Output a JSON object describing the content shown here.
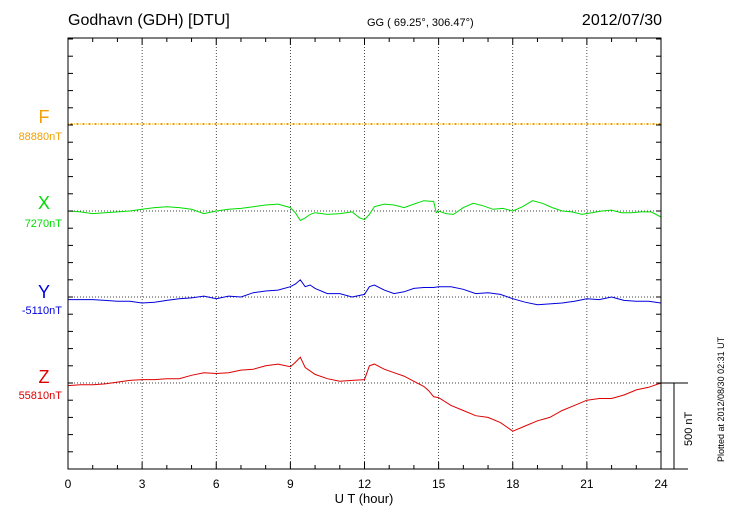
{
  "header": {
    "title": "Godhavn (GDH)  [DTU]",
    "coords": "GG ( 69.25°, 306.47°)",
    "date": "2012/07/30"
  },
  "channels": [
    {
      "name": "F",
      "baseline": "88880nT",
      "color": "#f0a000"
    },
    {
      "name": "X",
      "baseline": "7270nT",
      "color": "#00dd00"
    },
    {
      "name": "Y",
      "baseline": "-5110nT",
      "color": "#0000dd"
    },
    {
      "name": "Z",
      "baseline": "55810nT",
      "color": "#dd0000"
    }
  ],
  "scale_bar": {
    "label": "500 nT",
    "value_nT": 500
  },
  "footer": {
    "plotted": "Plotted at 2012/08/30 02:31  UT"
  },
  "chart_data": {
    "type": "line",
    "xlabel": "U T (hour)",
    "xlim": [
      0,
      24
    ],
    "xticks": [
      "0",
      "3",
      "6",
      "9",
      "12",
      "15",
      "18",
      "21",
      "24"
    ],
    "unit": "nT",
    "series": [
      {
        "name": "F",
        "baseline_nT": 88880,
        "color": "#f0a000",
        "x": [
          0,
          24
        ],
        "y": [
          0,
          0
        ]
      },
      {
        "name": "X",
        "baseline_nT": 7270,
        "color": "#00dd00",
        "x": [
          0,
          0.5,
          1,
          1.5,
          2,
          2.5,
          3,
          3.5,
          4,
          4.5,
          5,
          5.5,
          6,
          6.5,
          7,
          7.5,
          8,
          8.5,
          9,
          9.2,
          9.4,
          9.6,
          9.8,
          10,
          10.5,
          11,
          11.5,
          11.8,
          12,
          12.2,
          12.4,
          12.8,
          13.2,
          13.6,
          14,
          14.4,
          14.8,
          14.9,
          15,
          15.3,
          15.6,
          16,
          16.4,
          16.8,
          17.2,
          17.6,
          18,
          18.4,
          18.8,
          19.2,
          19.6,
          20,
          20.4,
          20.8,
          21.2,
          21.6,
          22,
          22.4,
          22.8,
          23.2,
          23.6,
          24
        ],
        "y": [
          0,
          -5,
          -15,
          -10,
          -5,
          0,
          10,
          20,
          25,
          20,
          10,
          -15,
          0,
          10,
          15,
          25,
          35,
          40,
          20,
          -10,
          -55,
          -40,
          -20,
          -10,
          -20,
          -15,
          -5,
          -40,
          -50,
          -20,
          25,
          40,
          35,
          20,
          40,
          60,
          55,
          -10,
          0,
          -15,
          -20,
          20,
          45,
          30,
          10,
          15,
          0,
          25,
          60,
          45,
          20,
          0,
          -5,
          -20,
          -10,
          0,
          5,
          -10,
          -10,
          -5,
          -5,
          -35
        ]
      },
      {
        "name": "Y",
        "baseline_nT": -5110,
        "color": "#0000dd",
        "x": [
          0,
          0.5,
          1,
          1.5,
          2,
          2.5,
          3,
          3.5,
          4,
          4.5,
          5,
          5.5,
          6,
          6.5,
          7,
          7.5,
          8,
          8.5,
          9,
          9.2,
          9.4,
          9.6,
          9.8,
          10,
          10.5,
          11,
          11.5,
          12,
          12.2,
          12.4,
          12.8,
          13.2,
          13.6,
          14,
          14.4,
          14.8,
          15,
          15.5,
          16,
          16.5,
          17,
          17.5,
          18,
          18.5,
          19,
          19.5,
          20,
          20.5,
          21,
          21.5,
          22,
          22.5,
          23,
          23.5,
          24
        ],
        "y": [
          -15,
          -15,
          -15,
          -20,
          -25,
          -25,
          -35,
          -30,
          -20,
          -10,
          -5,
          5,
          -10,
          5,
          0,
          25,
          35,
          40,
          60,
          75,
          100,
          60,
          70,
          50,
          20,
          20,
          0,
          15,
          60,
          70,
          40,
          20,
          30,
          50,
          55,
          55,
          60,
          60,
          45,
          20,
          25,
          15,
          -10,
          -30,
          -45,
          -40,
          -35,
          -25,
          -10,
          -15,
          0,
          -20,
          -25,
          -25,
          -35
        ]
      },
      {
        "name": "Z",
        "baseline_nT": 55810,
        "color": "#dd0000",
        "x": [
          0,
          0.5,
          1,
          1.5,
          2,
          2.5,
          3,
          3.5,
          4,
          4.5,
          5,
          5.5,
          6,
          6.5,
          7,
          7.5,
          8,
          8.5,
          9,
          9.2,
          9.4,
          9.6,
          10,
          10.5,
          11,
          11.5,
          12,
          12.2,
          12.4,
          12.8,
          13.2,
          13.6,
          14,
          14.4,
          14.6,
          14.8,
          15,
          15.5,
          16,
          16.5,
          17,
          17.5,
          18,
          18.5,
          19,
          19.5,
          20,
          20.5,
          21,
          21.5,
          22,
          22.5,
          23,
          23.5,
          24
        ],
        "y": [
          -15,
          -10,
          -10,
          -5,
          5,
          15,
          20,
          20,
          25,
          25,
          45,
          60,
          55,
          60,
          75,
          80,
          100,
          110,
          95,
          120,
          150,
          90,
          50,
          25,
          10,
          15,
          20,
          100,
          110,
          80,
          60,
          40,
          10,
          -20,
          -45,
          -80,
          -85,
          -130,
          -160,
          -190,
          -200,
          -230,
          -280,
          -250,
          -220,
          -200,
          -160,
          -130,
          -100,
          -90,
          -90,
          -70,
          -40,
          -25,
          0
        ]
      }
    ]
  }
}
